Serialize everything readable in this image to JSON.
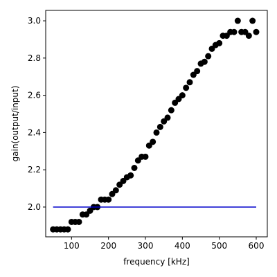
{
  "chart_data": {
    "type": "scatter",
    "title": "",
    "xlabel": "frequency [kHz]",
    "ylabel": "gain(output/input)",
    "xlim": [
      30,
      630
    ],
    "ylim": [
      1.84,
      3.056
    ],
    "xticks": [
      100,
      200,
      300,
      400,
      500,
      600
    ],
    "yticks": [
      2.0,
      2.2,
      2.4,
      2.6,
      2.8,
      3.0
    ],
    "xtick_labels": [
      "100",
      "200",
      "300",
      "400",
      "500",
      "600"
    ],
    "ytick_labels": [
      "2.0",
      "2.2",
      "2.4",
      "2.6",
      "2.8",
      "3.0"
    ],
    "grid": false,
    "series": [
      {
        "type": "scatter",
        "color": "#000000",
        "x": [
          50,
          60,
          70,
          80,
          90,
          100,
          110,
          120,
          130,
          140,
          150,
          160,
          170,
          180,
          190,
          200,
          210,
          220,
          230,
          240,
          250,
          260,
          270,
          280,
          290,
          300,
          310,
          320,
          330,
          340,
          350,
          360,
          370,
          380,
          390,
          400,
          410,
          420,
          430,
          440,
          450,
          460,
          470,
          480,
          490,
          500,
          510,
          520,
          530,
          540,
          550,
          560,
          570,
          580,
          590,
          600
        ],
        "y": [
          1.88,
          1.88,
          1.88,
          1.88,
          1.88,
          1.92,
          1.92,
          1.92,
          1.96,
          1.96,
          1.98,
          2.0,
          2.0,
          2.04,
          2.04,
          2.04,
          2.07,
          2.09,
          2.12,
          2.14,
          2.16,
          2.17,
          2.21,
          2.25,
          2.27,
          2.27,
          2.33,
          2.35,
          2.4,
          2.43,
          2.46,
          2.48,
          2.52,
          2.56,
          2.58,
          2.6,
          2.64,
          2.67,
          2.71,
          2.73,
          2.77,
          2.78,
          2.81,
          2.85,
          2.87,
          2.88,
          2.92,
          2.92,
          2.94,
          2.94,
          3.0,
          2.94,
          2.94,
          2.92,
          3.0,
          2.94
        ]
      },
      {
        "type": "line",
        "color": "#0000cc",
        "x": [
          50,
          600
        ],
        "y": [
          2.0,
          2.0
        ]
      }
    ]
  }
}
